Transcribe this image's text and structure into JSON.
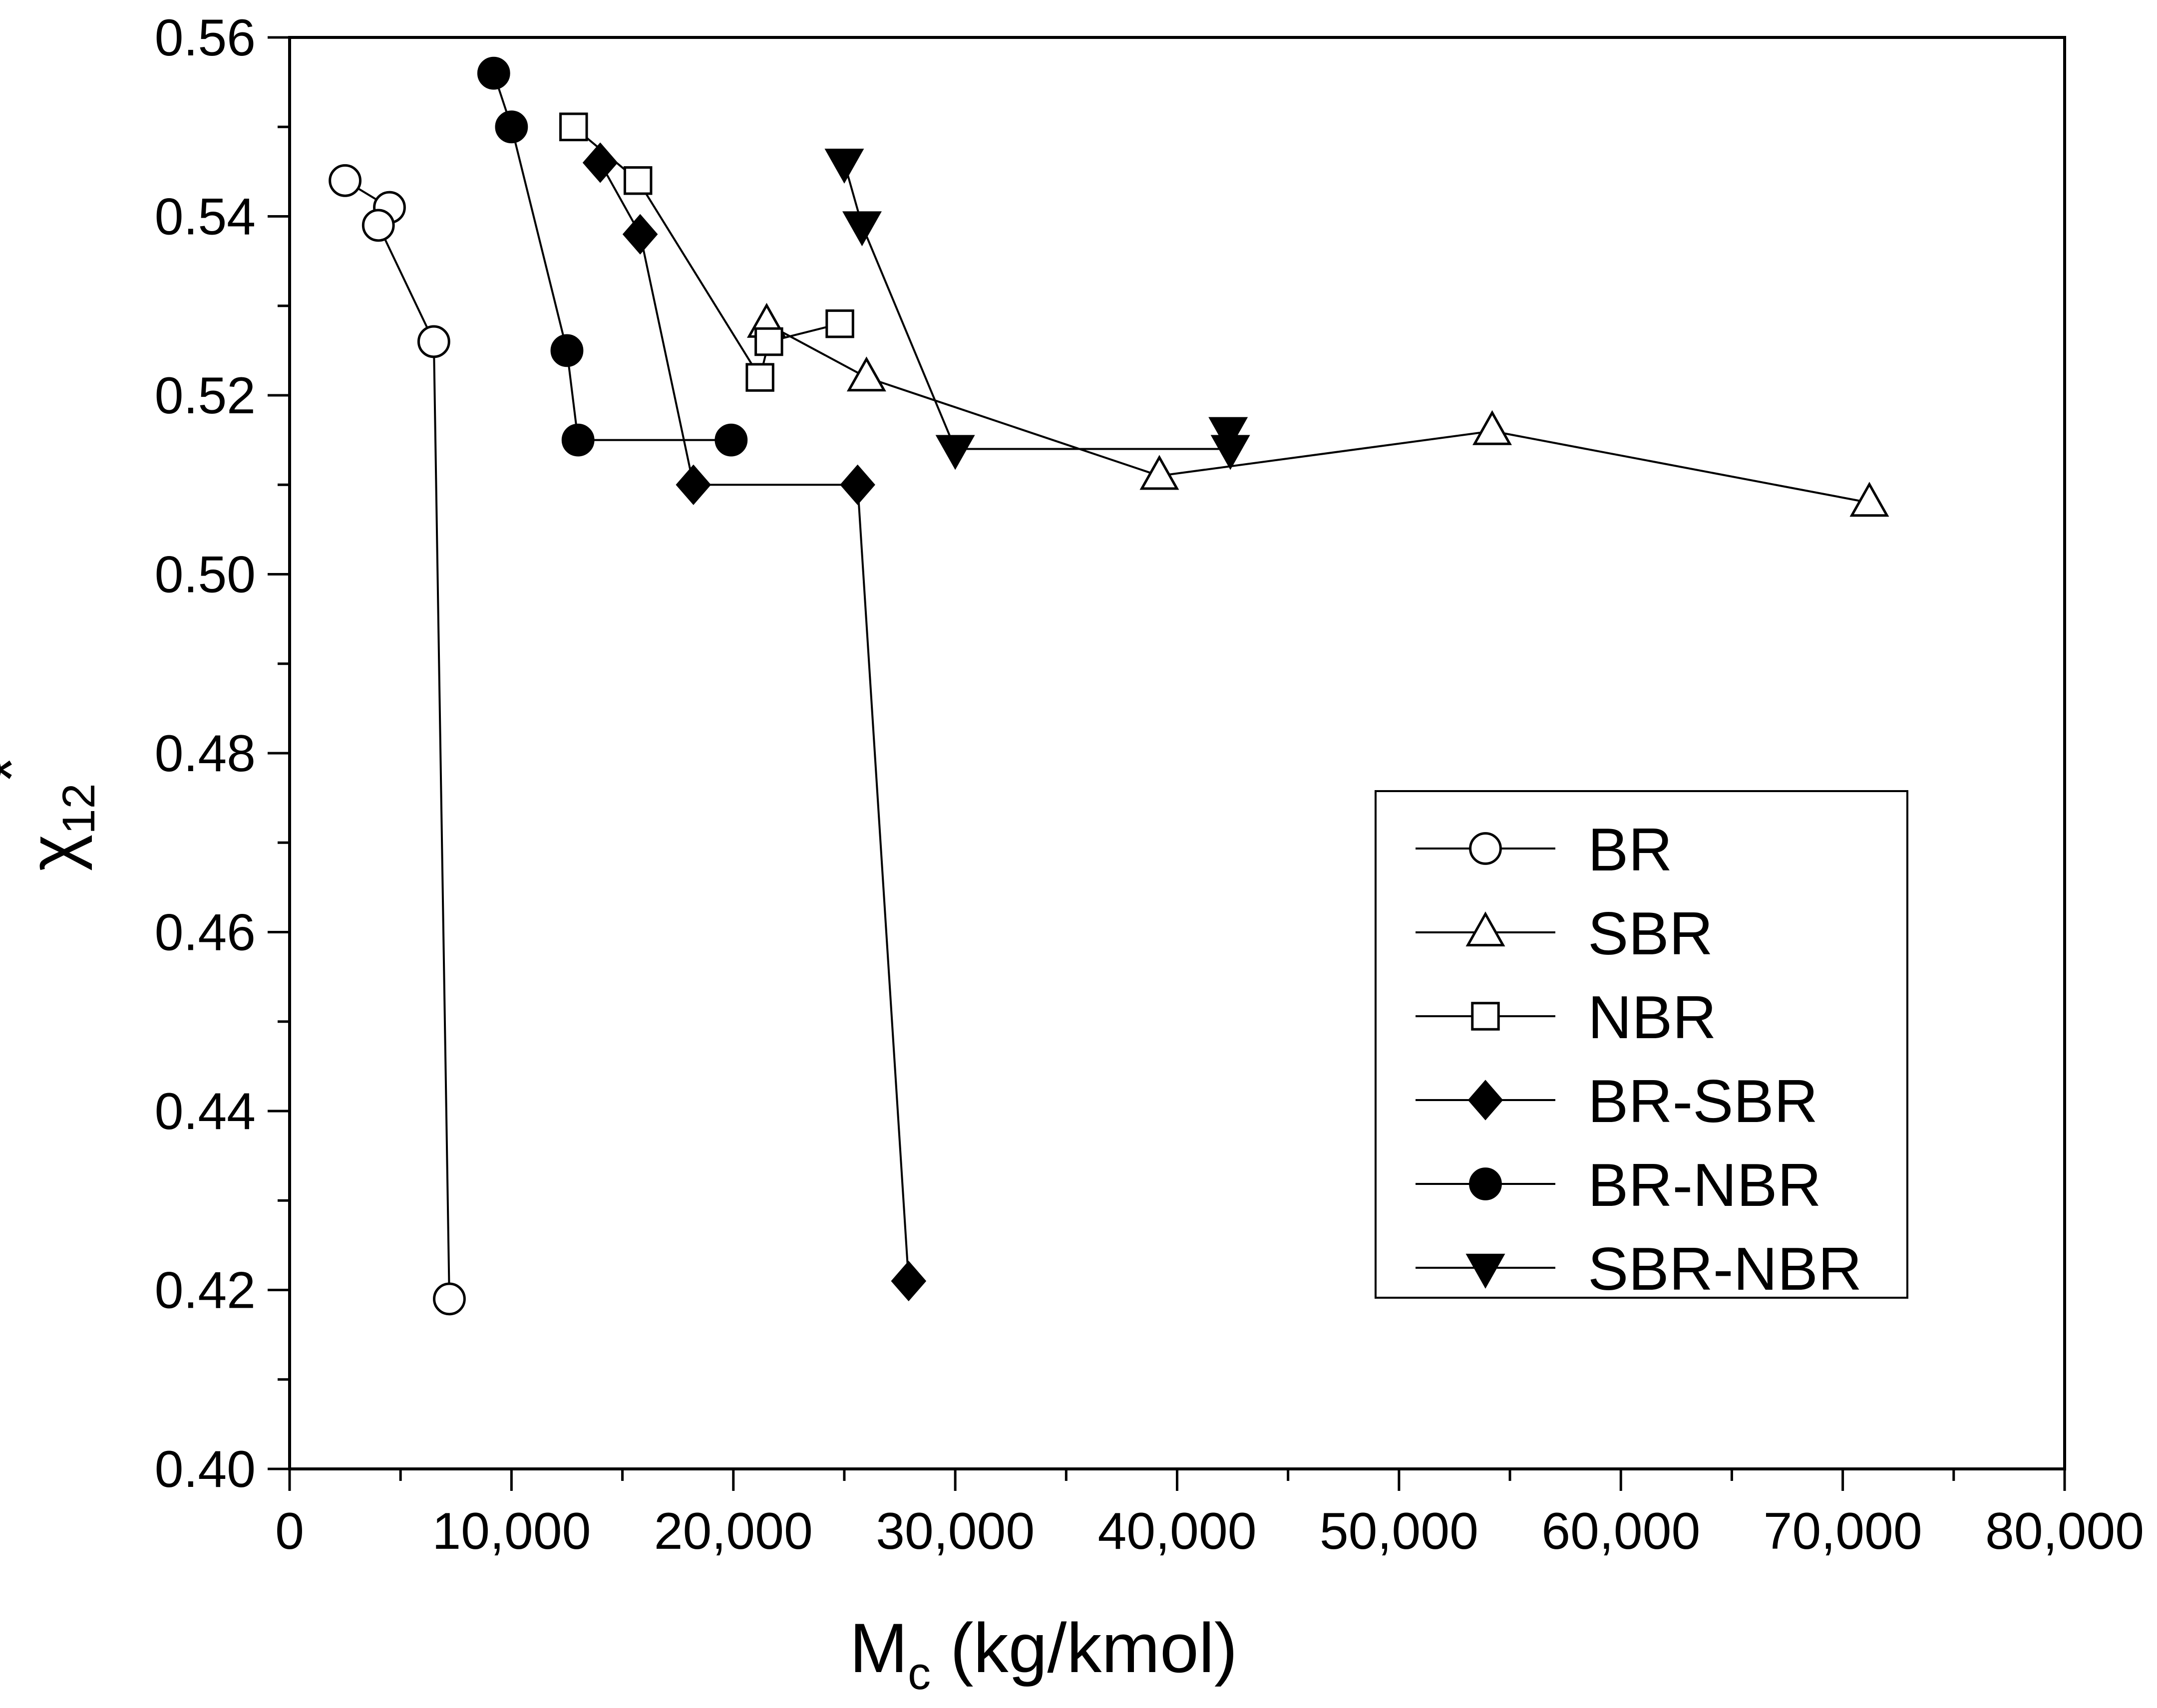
{
  "chart_data": {
    "type": "line",
    "title": "",
    "xlabel": {
      "main": "M",
      "sub": "c",
      "rest": " (kg/kmol)"
    },
    "ylabel": {
      "main": "χ",
      "sub": "12",
      "sup": "*"
    },
    "xlim": [
      0,
      80000
    ],
    "ylim": [
      0.4,
      0.56
    ],
    "x_ticks": [
      0,
      10000,
      20000,
      30000,
      40000,
      50000,
      60000,
      70000,
      80000
    ],
    "x_tick_labels": [
      "0",
      "10,000",
      "20,000",
      "30,000",
      "40,000",
      "50,000",
      "60,000",
      "70,000",
      "80,000"
    ],
    "y_ticks": [
      0.4,
      0.42,
      0.44,
      0.46,
      0.48,
      0.5,
      0.52,
      0.54,
      0.56
    ],
    "y_tick_labels": [
      "0.40",
      "0.42",
      "0.44",
      "0.46",
      "0.48",
      "0.50",
      "0.52",
      "0.54",
      "0.56"
    ],
    "grid": false,
    "legend_position": "bottom-right",
    "series": [
      {
        "name": "BR",
        "marker": "circle",
        "filled": false,
        "x": [
          2500,
          4500,
          4000,
          6500,
          7200
        ],
        "y": [
          0.544,
          0.541,
          0.539,
          0.526,
          0.419
        ]
      },
      {
        "name": "SBR",
        "marker": "triangle-up",
        "filled": false,
        "x": [
          21500,
          26000,
          39200,
          54200,
          71200
        ],
        "y": [
          0.528,
          0.522,
          0.511,
          0.516,
          0.508
        ]
      },
      {
        "name": "NBR",
        "marker": "square",
        "filled": false,
        "x": [
          12800,
          15700,
          21200,
          21600,
          24800
        ],
        "y": [
          0.55,
          0.544,
          0.522,
          0.526,
          0.528
        ]
      },
      {
        "name": "BR-SBR",
        "marker": "diamond",
        "filled": true,
        "x": [
          14000,
          15800,
          18200,
          25600,
          27900
        ],
        "y": [
          0.546,
          0.538,
          0.51,
          0.51,
          0.421
        ]
      },
      {
        "name": "BR-NBR",
        "marker": "circle",
        "filled": true,
        "x": [
          9200,
          10000,
          12500,
          13000,
          19900
        ],
        "y": [
          0.556,
          0.55,
          0.525,
          0.515,
          0.515
        ]
      },
      {
        "name": "SBR-NBR",
        "marker": "triangle-down",
        "filled": true,
        "x": [
          25000,
          25800,
          30000,
          42400,
          42300
        ],
        "y": [
          0.546,
          0.539,
          0.514,
          0.514,
          0.516
        ]
      }
    ]
  }
}
